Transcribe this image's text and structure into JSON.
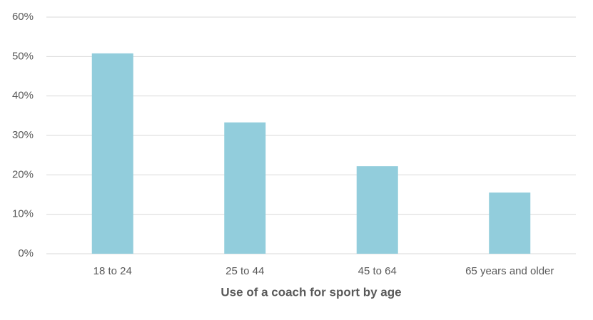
{
  "chart_data": {
    "type": "bar",
    "x_label": "Use of a coach for sport by age",
    "categories": [
      "18 to 24",
      "25 to 44",
      "45 to 64",
      "65 years and older"
    ],
    "values": [
      50.8,
      33.3,
      22.2,
      15.5
    ],
    "color": "#92cddc",
    "ylim": [
      0,
      60
    ],
    "yticks": [
      {
        "value": 0,
        "label": "0%"
      },
      {
        "value": 10,
        "label": "10%"
      },
      {
        "value": 20,
        "label": "20%"
      },
      {
        "value": 30,
        "label": "30%"
      },
      {
        "value": 40,
        "label": "40%"
      },
      {
        "value": 50,
        "label": "50%"
      },
      {
        "value": 60,
        "label": "60%"
      }
    ],
    "grid": true
  }
}
